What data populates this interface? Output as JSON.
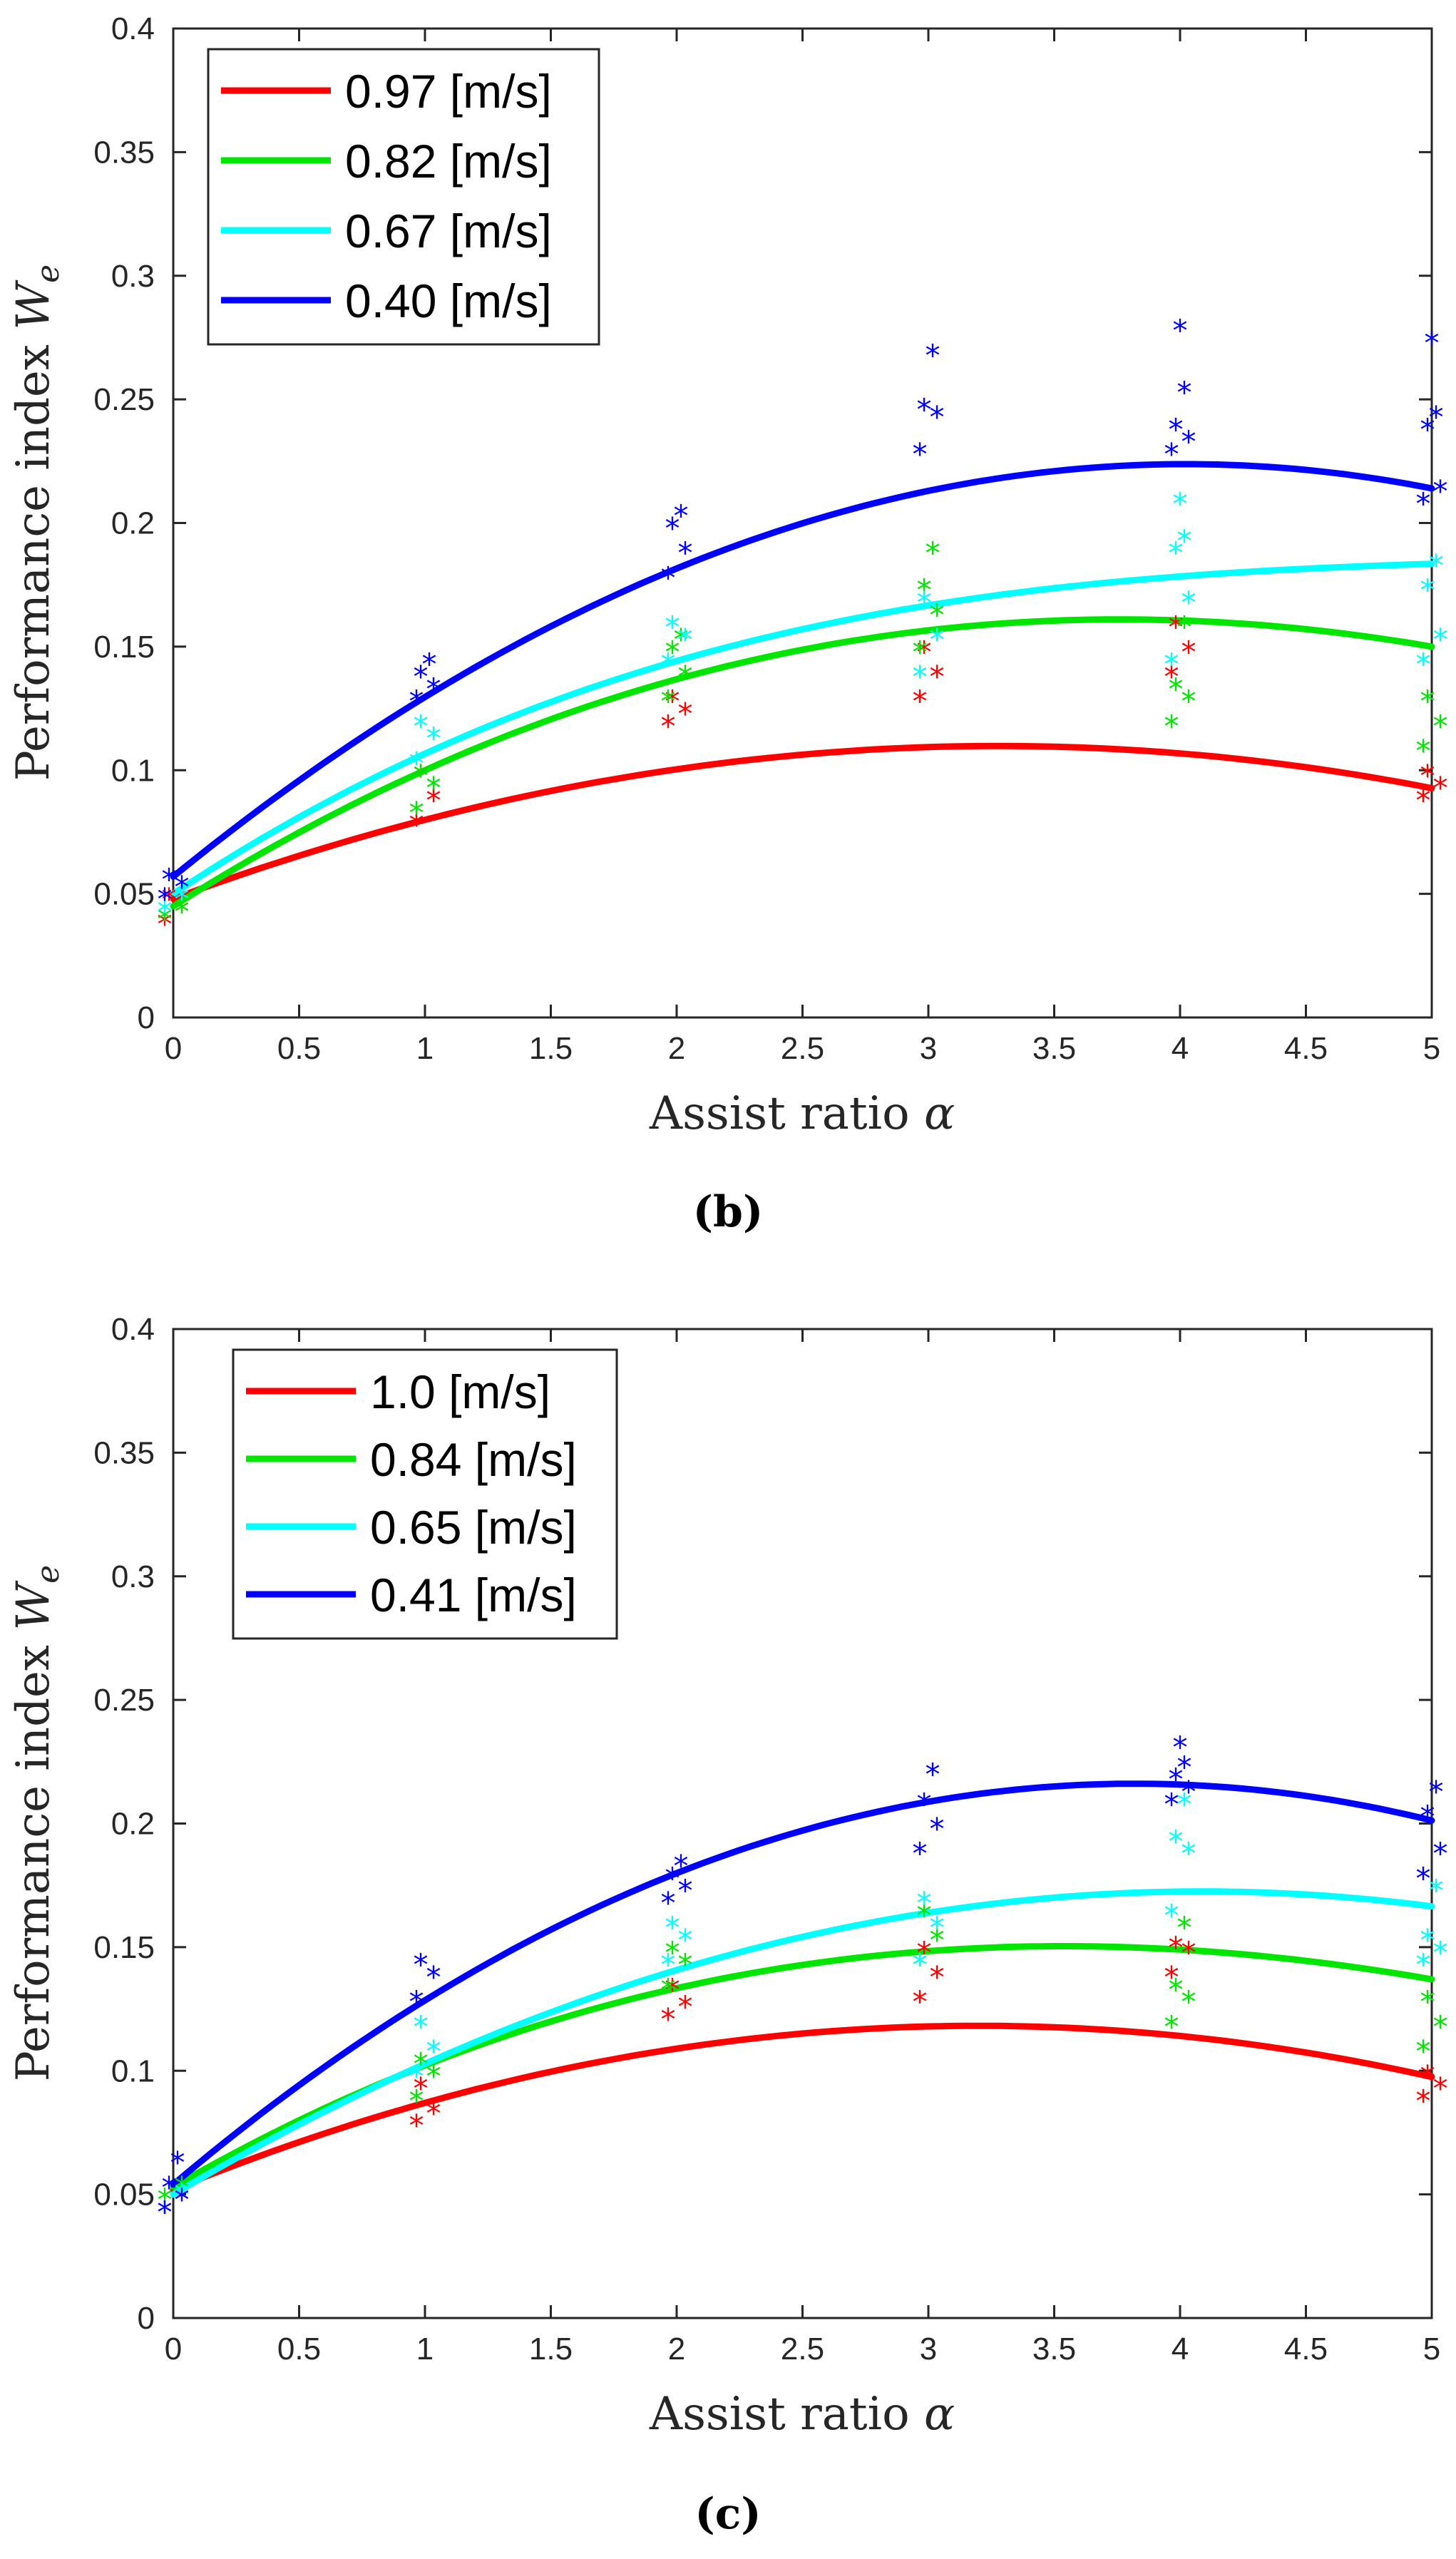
{
  "chart_data": [
    {
      "type": "scatter",
      "panel_label": "b",
      "xlabel": "Assist ratio",
      "xlabel_symbol": "α",
      "ylabel": "Performance index",
      "ylabel_symbol": "W",
      "ylabel_subscript": "e",
      "xlim": [
        0,
        5
      ],
      "ylim": [
        0,
        0.4
      ],
      "xticks": [
        "0",
        "0.5",
        "1",
        "1.5",
        "2",
        "2.5",
        "3",
        "3.5",
        "4",
        "4.5",
        "5"
      ],
      "yticks": [
        "0",
        "0.05",
        "0.1",
        "0.15",
        "0.2",
        "0.25",
        "0.3",
        "0.35",
        "0.4"
      ],
      "legend_position": "top-left",
      "series": [
        {
          "name": "0.97 [m/s]",
          "color": "#ff0000",
          "points": [
            [
              0,
              0.04
            ],
            [
              0,
              0.045
            ],
            [
              0,
              0.05
            ],
            [
              1,
              0.08
            ],
            [
              1,
              0.09
            ],
            [
              1,
              0.1
            ],
            [
              2,
              0.12
            ],
            [
              2,
              0.125
            ],
            [
              2,
              0.13
            ],
            [
              3,
              0.13
            ],
            [
              3,
              0.14
            ],
            [
              3,
              0.15
            ],
            [
              4,
              0.14
            ],
            [
              4,
              0.15
            ],
            [
              4,
              0.16
            ],
            [
              5,
              0.09
            ],
            [
              5,
              0.095
            ],
            [
              5,
              0.1
            ]
          ],
          "fit": [
            0.048,
            0.0377,
            -0.00575
          ]
        },
        {
          "name": "0.82 [m/s]",
          "color": "#00e600",
          "points": [
            [
              0,
              0.042
            ],
            [
              0,
              0.045
            ],
            [
              1,
              0.085
            ],
            [
              1,
              0.095
            ],
            [
              1,
              0.1
            ],
            [
              2,
              0.13
            ],
            [
              2,
              0.14
            ],
            [
              2,
              0.15
            ],
            [
              2,
              0.155
            ],
            [
              3,
              0.15
            ],
            [
              3,
              0.165
            ],
            [
              3,
              0.175
            ],
            [
              3,
              0.19
            ],
            [
              4,
              0.12
            ],
            [
              4,
              0.13
            ],
            [
              4,
              0.135
            ],
            [
              4,
              0.16
            ],
            [
              5,
              0.11
            ],
            [
              5,
              0.12
            ],
            [
              5,
              0.13
            ]
          ],
          "fit": [
            0.045,
            0.0645,
            -0.0097,
            0.0002
          ]
        },
        {
          "name": "0.67 [m/s]",
          "color": "#00ffff",
          "points": [
            [
              0,
              0.045
            ],
            [
              0,
              0.05
            ],
            [
              1,
              0.105
            ],
            [
              1,
              0.115
            ],
            [
              1,
              0.12
            ],
            [
              2,
              0.145
            ],
            [
              2,
              0.155
            ],
            [
              2,
              0.16
            ],
            [
              3,
              0.14
            ],
            [
              3,
              0.155
            ],
            [
              3,
              0.17
            ],
            [
              4,
              0.145
            ],
            [
              4,
              0.17
            ],
            [
              4,
              0.19
            ],
            [
              4,
              0.195
            ],
            [
              4,
              0.21
            ],
            [
              5,
              0.145
            ],
            [
              5,
              0.155
            ],
            [
              5,
              0.175
            ],
            [
              5,
              0.185
            ]
          ],
          "fit": [
            0.05,
            0.0677,
            -0.0117,
            0.0007
          ]
        },
        {
          "name": "0.40 [m/s]",
          "color": "#0000ff",
          "points": [
            [
              0,
              0.05
            ],
            [
              0,
              0.055
            ],
            [
              0,
              0.058
            ],
            [
              1,
              0.13
            ],
            [
              1,
              0.135
            ],
            [
              1,
              0.14
            ],
            [
              1,
              0.145
            ],
            [
              2,
              0.18
            ],
            [
              2,
              0.19
            ],
            [
              2,
              0.2
            ],
            [
              2,
              0.205
            ],
            [
              3,
              0.23
            ],
            [
              3,
              0.245
            ],
            [
              3,
              0.248
            ],
            [
              3,
              0.27
            ],
            [
              4,
              0.23
            ],
            [
              4,
              0.235
            ],
            [
              4,
              0.24
            ],
            [
              4,
              0.255
            ],
            [
              4,
              0.28
            ],
            [
              5,
              0.21
            ],
            [
              5,
              0.215
            ],
            [
              5,
              0.24
            ],
            [
              5,
              0.245
            ],
            [
              5,
              0.275
            ]
          ],
          "fit": [
            0.057,
            0.0829,
            -0.0103
          ]
        }
      ]
    },
    {
      "type": "scatter",
      "panel_label": "c",
      "xlabel": "Assist ratio",
      "xlabel_symbol": "α",
      "ylabel": "Performance index",
      "ylabel_symbol": "W",
      "ylabel_subscript": "e",
      "xlim": [
        0,
        5
      ],
      "ylim": [
        0,
        0.4
      ],
      "xticks": [
        "0",
        "0.5",
        "1",
        "1.5",
        "2",
        "2.5",
        "3",
        "3.5",
        "4",
        "4.5",
        "5"
      ],
      "yticks": [
        "0",
        "0.05",
        "0.1",
        "0.15",
        "0.2",
        "0.25",
        "0.3",
        "0.35",
        "0.4"
      ],
      "legend_position": "top-left",
      "series": [
        {
          "name": "1.0 [m/s]",
          "color": "#ff0000",
          "points": [
            [
              0,
              0.045
            ],
            [
              0,
              0.05
            ],
            [
              1,
              0.08
            ],
            [
              1,
              0.085
            ],
            [
              1,
              0.095
            ],
            [
              2,
              0.123
            ],
            [
              2,
              0.128
            ],
            [
              2,
              0.135
            ],
            [
              3,
              0.13
            ],
            [
              3,
              0.14
            ],
            [
              3,
              0.15
            ],
            [
              4,
              0.14
            ],
            [
              4,
              0.15
            ],
            [
              4,
              0.152
            ],
            [
              5,
              0.09
            ],
            [
              5,
              0.095
            ],
            [
              5,
              0.1
            ]
          ],
          "fit": [
            0.052,
            0.0416,
            -0.0066,
            2e-05
          ]
        },
        {
          "name": "0.84 [m/s]",
          "color": "#00e600",
          "points": [
            [
              0,
              0.05
            ],
            [
              0,
              0.055
            ],
            [
              1,
              0.09
            ],
            [
              1,
              0.1
            ],
            [
              1,
              0.105
            ],
            [
              2,
              0.135
            ],
            [
              2,
              0.145
            ],
            [
              2,
              0.15
            ],
            [
              3,
              0.145
            ],
            [
              3,
              0.155
            ],
            [
              3,
              0.165
            ],
            [
              4,
              0.12
            ],
            [
              4,
              0.13
            ],
            [
              4,
              0.135
            ],
            [
              4,
              0.16
            ],
            [
              5,
              0.11
            ],
            [
              5,
              0.12
            ],
            [
              5,
              0.13
            ]
          ],
          "fit": [
            0.053,
            0.0588,
            -0.0099,
            0.0003
          ]
        },
        {
          "name": "0.65 [m/s]",
          "color": "#00ffff",
          "points": [
            [
              0,
              0.045
            ],
            [
              0,
              0.052
            ],
            [
              1,
              0.1
            ],
            [
              1,
              0.11
            ],
            [
              1,
              0.12
            ],
            [
              2,
              0.145
            ],
            [
              2,
              0.155
            ],
            [
              2,
              0.16
            ],
            [
              3,
              0.145
            ],
            [
              3,
              0.16
            ],
            [
              3,
              0.17
            ],
            [
              4,
              0.165
            ],
            [
              4,
              0.19
            ],
            [
              4,
              0.195
            ],
            [
              4,
              0.21
            ],
            [
              5,
              0.145
            ],
            [
              5,
              0.15
            ],
            [
              5,
              0.155
            ],
            [
              5,
              0.175
            ]
          ],
          "fit": [
            0.05,
            0.0603,
            -0.0075,
            2e-05
          ]
        },
        {
          "name": "0.41 [m/s]",
          "color": "#0000ff",
          "points": [
            [
              0,
              0.045
            ],
            [
              0,
              0.05
            ],
            [
              0,
              0.055
            ],
            [
              0,
              0.065
            ],
            [
              1,
              0.13
            ],
            [
              1,
              0.14
            ],
            [
              1,
              0.145
            ],
            [
              2,
              0.17
            ],
            [
              2,
              0.175
            ],
            [
              2,
              0.18
            ],
            [
              2,
              0.185
            ],
            [
              3,
              0.19
            ],
            [
              3,
              0.2
            ],
            [
              3,
              0.21
            ],
            [
              3,
              0.222
            ],
            [
              4,
              0.21
            ],
            [
              4,
              0.215
            ],
            [
              4,
              0.22
            ],
            [
              4,
              0.225
            ],
            [
              4,
              0.233
            ],
            [
              5,
              0.18
            ],
            [
              5,
              0.19
            ],
            [
              5,
              0.205
            ],
            [
              5,
              0.215
            ]
          ],
          "fit": [
            0.054,
            0.0862,
            -0.0118,
            9e-05
          ]
        }
      ]
    }
  ]
}
